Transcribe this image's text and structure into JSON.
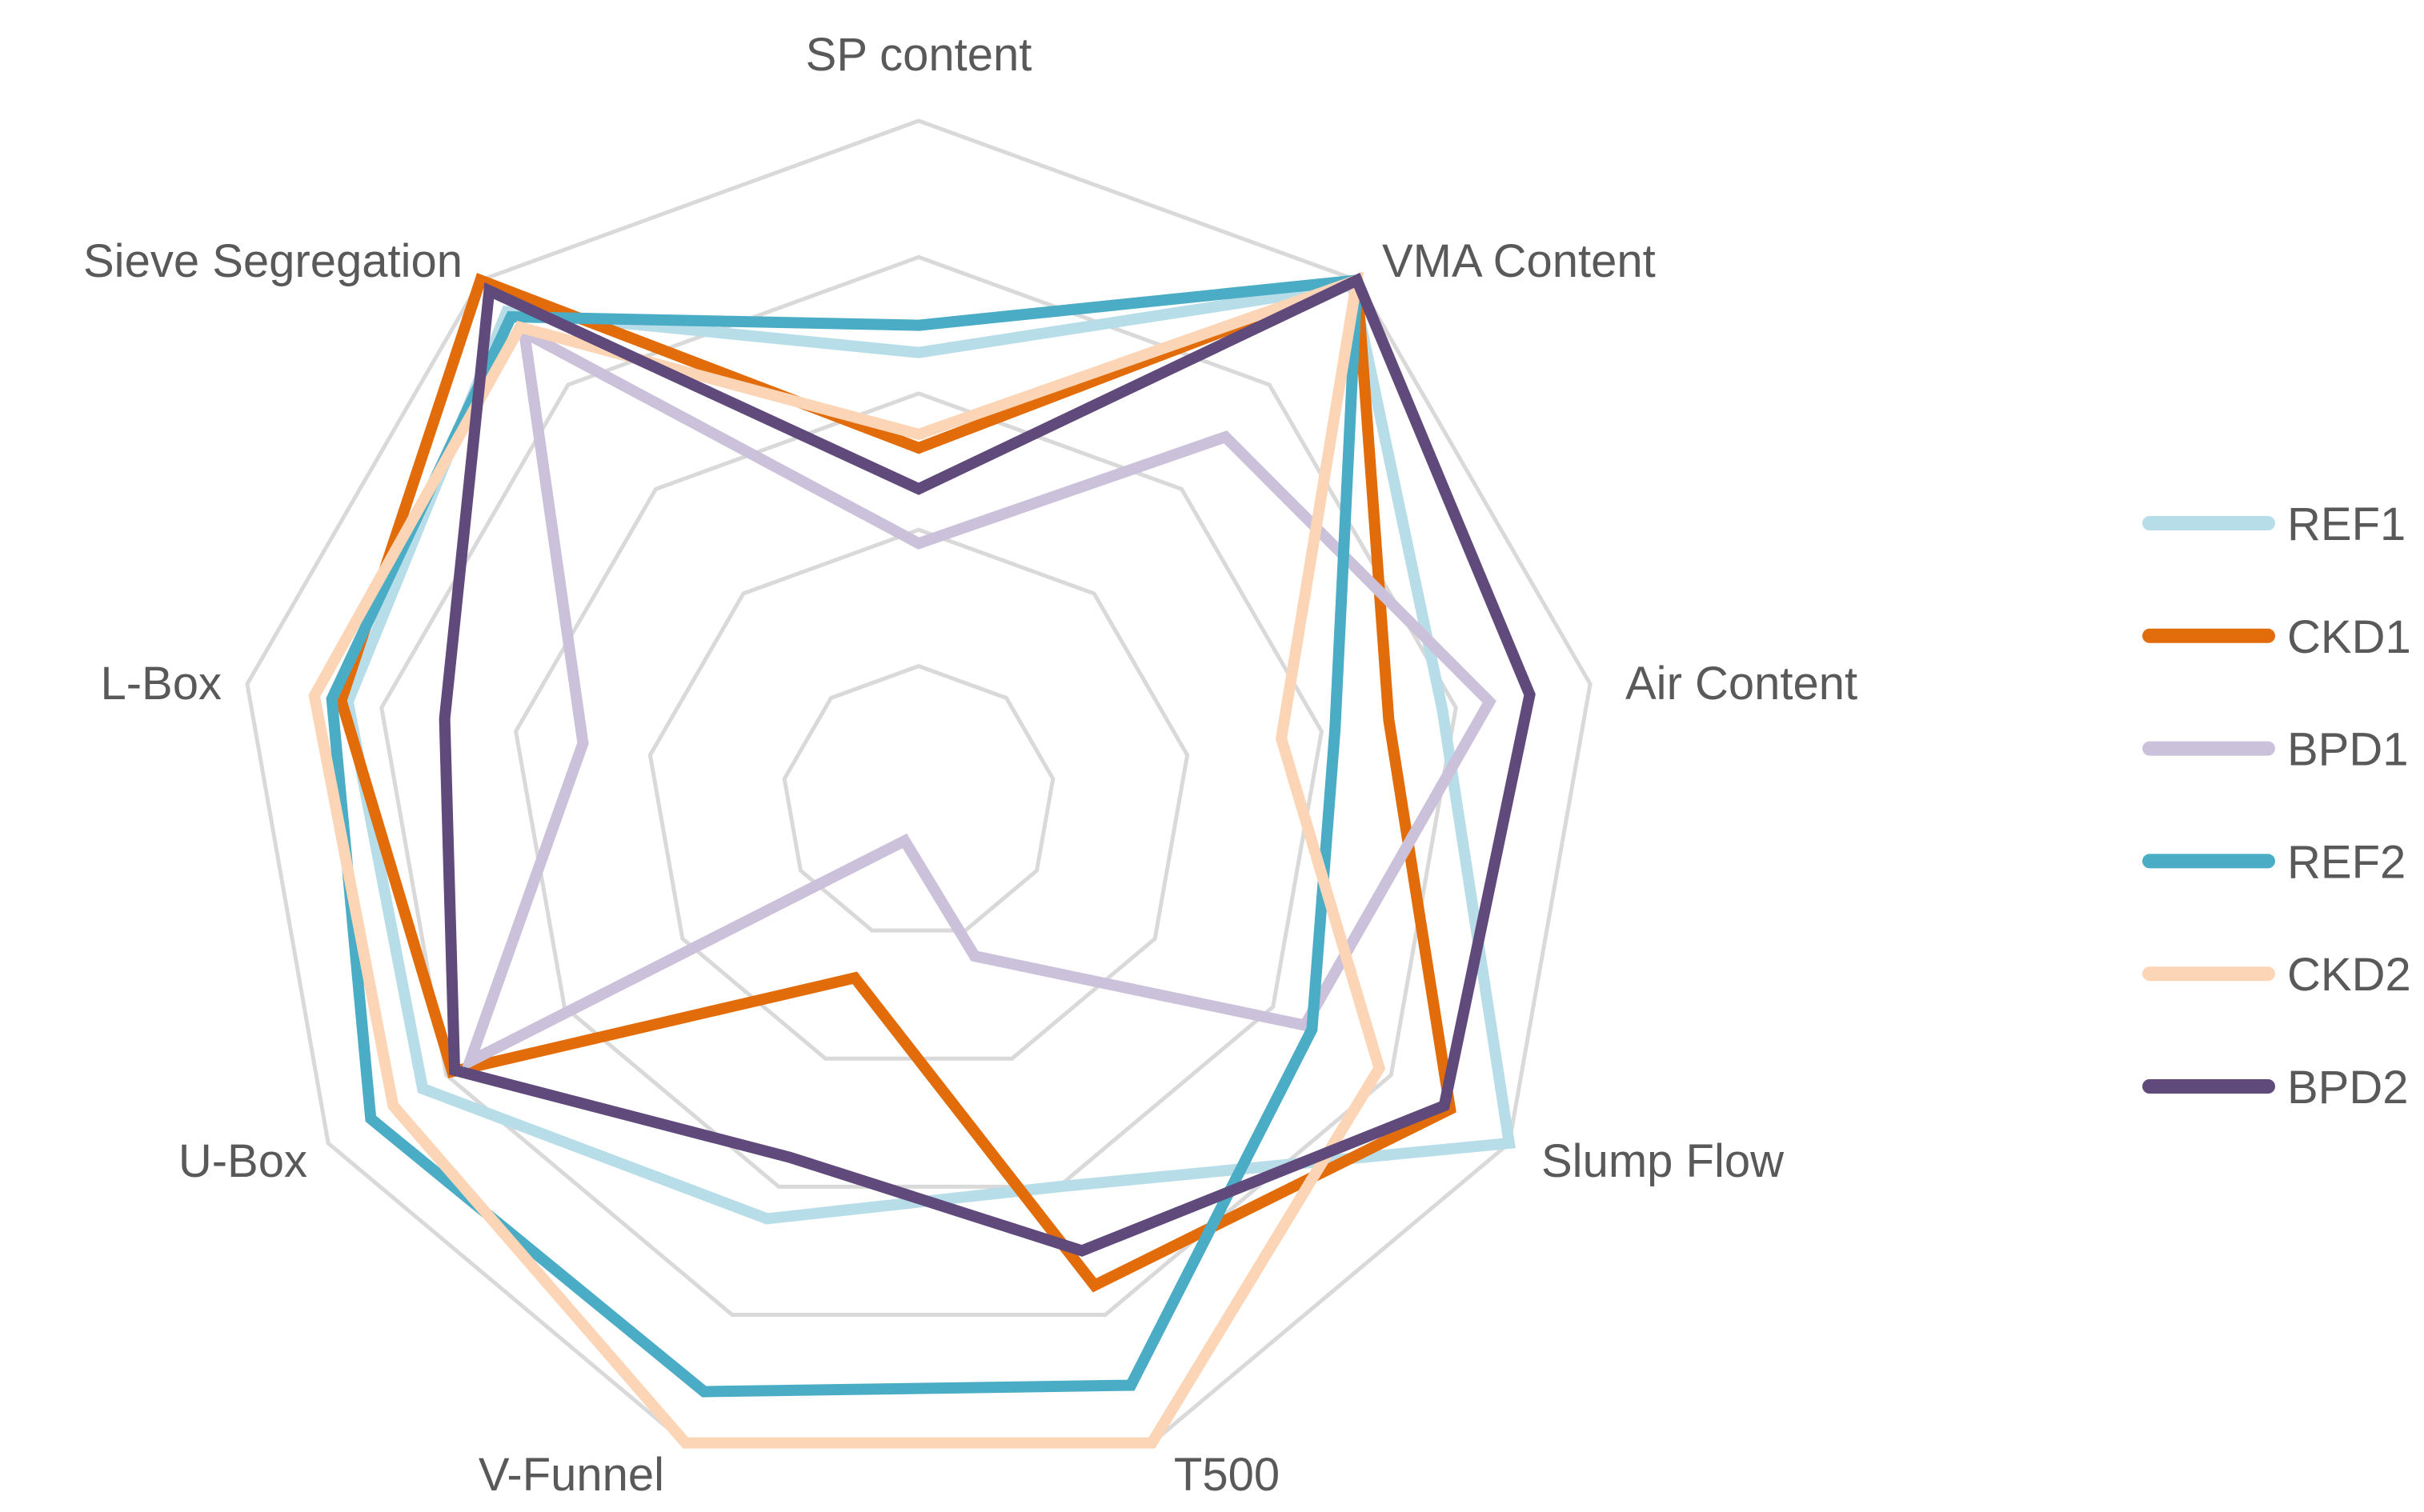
{
  "chart_data": {
    "type": "radar",
    "title": "",
    "axes": [
      "SP content",
      "VMA Content",
      "Air Content",
      "Slump Flow",
      "T500",
      "V-Funnel",
      "U-Box",
      "L-Box",
      "Sieve Segregation"
    ],
    "rlim": [
      0,
      5
    ],
    "grid_rings": 5,
    "grid": true,
    "legend_position": "right",
    "grid_color": "#d9d9d9",
    "series": [
      {
        "name": "REF1",
        "color": "#b7dde8",
        "values": [
          3.3,
          4.95,
          3.9,
          5.0,
          3.0,
          3.25,
          4.2,
          4.25,
          4.7
        ]
      },
      {
        "name": "CKD1",
        "color": "#e36c0a",
        "values": [
          2.6,
          5.0,
          3.5,
          4.5,
          3.77,
          1.37,
          3.95,
          4.3,
          5.0
        ]
      },
      {
        "name": "BPD1",
        "color": "#ccc1da",
        "values": [
          1.9,
          3.5,
          4.25,
          3.27,
          1.2,
          0.3,
          3.8,
          2.5,
          4.5
        ]
      },
      {
        "name": "REF2",
        "color": "#4bacc6",
        "values": [
          3.5,
          5.0,
          3.1,
          3.33,
          4.55,
          4.6,
          4.64,
          4.37,
          4.65
        ]
      },
      {
        "name": "CKD2",
        "color": "#fbd5b5",
        "values": [
          2.7,
          5.0,
          2.7,
          3.9,
          5.0,
          5.0,
          4.45,
          4.5,
          4.55
        ]
      },
      {
        "name": "BPD2",
        "color": "#604a7b",
        "values": [
          2.3,
          5.0,
          4.55,
          4.45,
          3.5,
          2.77,
          3.93,
          3.53,
          4.9
        ]
      }
    ]
  }
}
